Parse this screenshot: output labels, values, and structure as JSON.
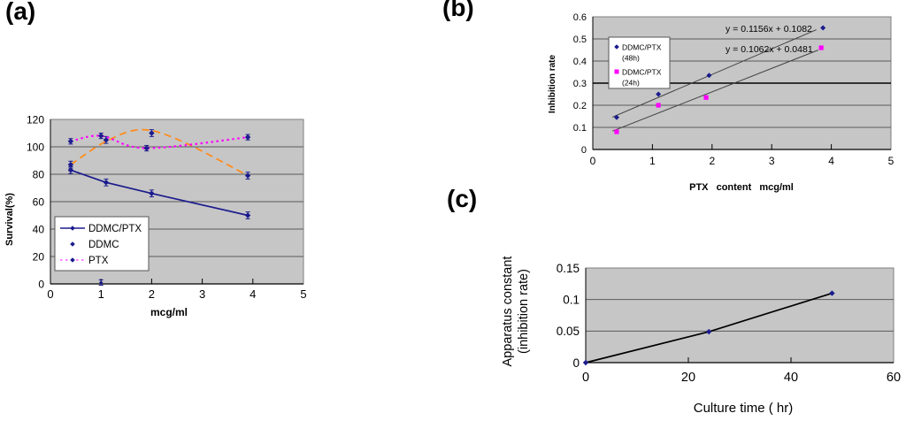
{
  "colors": {
    "plot_background": "#c6c6c6",
    "plot_border": "#7f7f7f",
    "gridline": "#5a5a5a",
    "axis": "#000000",
    "navy": "#1b1b8e",
    "orange": "#ff8c1a",
    "magenta": "#ff00ff",
    "trendline": "#404040",
    "legend_background": "#ffffff"
  },
  "chart_data": [
    {
      "panel_label": "(a)",
      "type": "line",
      "xlabel": "mcg/ml",
      "ylabel": "Survival(%)",
      "xlim": [
        0,
        5
      ],
      "ylim": [
        0,
        120
      ],
      "x_tick_values": [
        0,
        1,
        2,
        3,
        4,
        5
      ],
      "x_tick_labels": [
        "0",
        "1",
        "2",
        "3",
        "4",
        "5"
      ],
      "y_tick_values": [
        0,
        20,
        40,
        60,
        80,
        100,
        120
      ],
      "y_tick_labels": [
        "0",
        "20",
        "40",
        "60",
        "80",
        "100",
        "120"
      ],
      "legend": [
        {
          "label": "DDMC/PTX",
          "sample": "solid"
        },
        {
          "label": "DDMC",
          "sample": "marker"
        },
        {
          "label": "PTX",
          "sample": "dotted"
        }
      ],
      "marker_color": "#1b1b8e",
      "series": [
        {
          "name": "DDMC/PTX",
          "line": "solid",
          "color": "#1b1b8e",
          "smooth": false,
          "x": [
            0.4,
            1.1,
            2,
            3.9
          ],
          "y": [
            83,
            74,
            66,
            50
          ],
          "error": 2.5
        },
        {
          "name": "DDMC",
          "line": "dashed",
          "color": "#ff8c1a",
          "smooth": true,
          "x": [
            0.4,
            1.1,
            2,
            3.9
          ],
          "y": [
            87,
            105,
            110,
            79
          ],
          "error": 2.5,
          "curve_x": [
            0.4,
            1.1,
            1.8,
            2.6,
            3.9
          ],
          "curve_y": [
            87,
            104,
            112.5,
            104,
            79
          ]
        },
        {
          "name": "PTX",
          "line": "dotted",
          "color": "#ff00ff",
          "smooth": true,
          "x": [
            0.4,
            1.0,
            1.9,
            3.9
          ],
          "y": [
            104,
            108,
            99,
            107
          ],
          "error": 2
        }
      ],
      "stray_point": {
        "x": 1.0,
        "y": 1
      }
    },
    {
      "panel_label": "(b)",
      "type": "scatter",
      "xlabel": "PTX content mcg/ml",
      "ylabel": "Inhibition rate",
      "xlim": [
        0,
        5
      ],
      "ylim": [
        0,
        0.6
      ],
      "x_tick_values": [
        0,
        1,
        2,
        3,
        4,
        5
      ],
      "x_tick_labels": [
        "0",
        "1",
        "2",
        "3",
        "4",
        "5"
      ],
      "y_tick_values": [
        0,
        0.1,
        0.2,
        0.3,
        0.4,
        0.5,
        0.6
      ],
      "y_tick_labels": [
        "0",
        "0.1",
        "0.2",
        "0.3",
        "0.4",
        "0.5",
        "0.6"
      ],
      "legend": [
        {
          "label_line1": "DDMC/PTX",
          "label_line2": "(48h)",
          "marker": "diamond",
          "color": "#1b1b8e"
        },
        {
          "label_line1": "DDMC/PTX",
          "label_line2": "(24h)",
          "marker": "square",
          "color": "#ff00ff"
        }
      ],
      "series": [
        {
          "name": "DDMC/PTX (48h)",
          "marker": "diamond",
          "color": "#1b1b8e",
          "x": [
            0.4,
            1.1,
            1.95,
            3.86
          ],
          "y": [
            0.145,
            0.25,
            0.335,
            0.55
          ],
          "trendline": {
            "slope": 0.1156,
            "intercept": 0.1082,
            "equation": "y = 0.1156x + 0.1082",
            "x_start": 0.33,
            "x_end": 3.75
          }
        },
        {
          "name": "DDMC/PTX (24h)",
          "marker": "square",
          "color": "#ff00ff",
          "x": [
            0.4,
            1.1,
            1.9,
            3.83
          ],
          "y": [
            0.08,
            0.2,
            0.235,
            0.46
          ],
          "trendline": {
            "slope": 0.1062,
            "intercept": 0.0481,
            "equation": "y = 0.1062x + 0.0481",
            "x_start": 0.33,
            "x_end": 3.78
          }
        }
      ]
    },
    {
      "panel_label": "(c)",
      "type": "line",
      "xlabel": "Culture time ( hr)",
      "ylabel_line1": "Apparatus constant",
      "ylabel_line2": "(inhibition rate)",
      "xlim": [
        0,
        60
      ],
      "ylim": [
        0,
        0.15
      ],
      "x_tick_values": [
        0,
        20,
        40,
        60
      ],
      "x_tick_labels": [
        "0",
        "20",
        "40",
        "60"
      ],
      "y_tick_values": [
        0,
        0.05,
        0.1,
        0.15
      ],
      "y_tick_labels": [
        "0",
        "0.05",
        "0.1",
        "0.15"
      ],
      "series": [
        {
          "name": "Apparatus constant",
          "line": "solid",
          "color": "#000000",
          "marker_color": "#1b1b8e",
          "x": [
            0,
            24,
            48
          ],
          "y": [
            0,
            0.049,
            0.11
          ]
        }
      ]
    }
  ]
}
